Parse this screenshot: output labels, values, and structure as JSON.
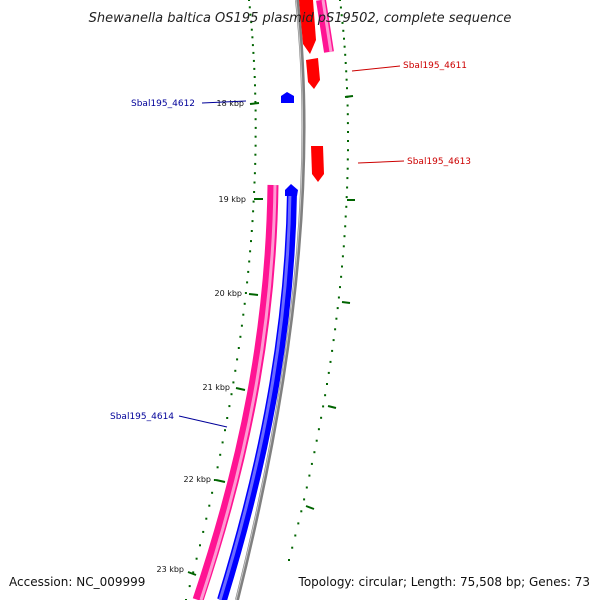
{
  "title": "Shewanella baltica OS195 plasmid pS19502, complete sequence",
  "accession": "Accession: NC_009999",
  "topology": "Topology: circular; Length: 75,508 bp; Genes: 73",
  "colors": {
    "forward_cds": "#ff0000",
    "reverse_cds": "#0000ff",
    "forward_gene": "#ff1493",
    "reverse_gene": "#0000ff",
    "backbone": "#808080",
    "ticks": "#006400",
    "forward_label": "#cc0000",
    "reverse_label": "#000099"
  },
  "tick_labels": [
    "18 kbp",
    "19 kbp",
    "20 kbp",
    "21 kbp",
    "22 kbp",
    "23 kbp"
  ],
  "gene_labels": {
    "sbal4611": "Sbal195_4611",
    "sbal4612": "Sbal195_4612",
    "sbal4613": "Sbal195_4613",
    "sbal4614": "Sbal195_4614"
  }
}
